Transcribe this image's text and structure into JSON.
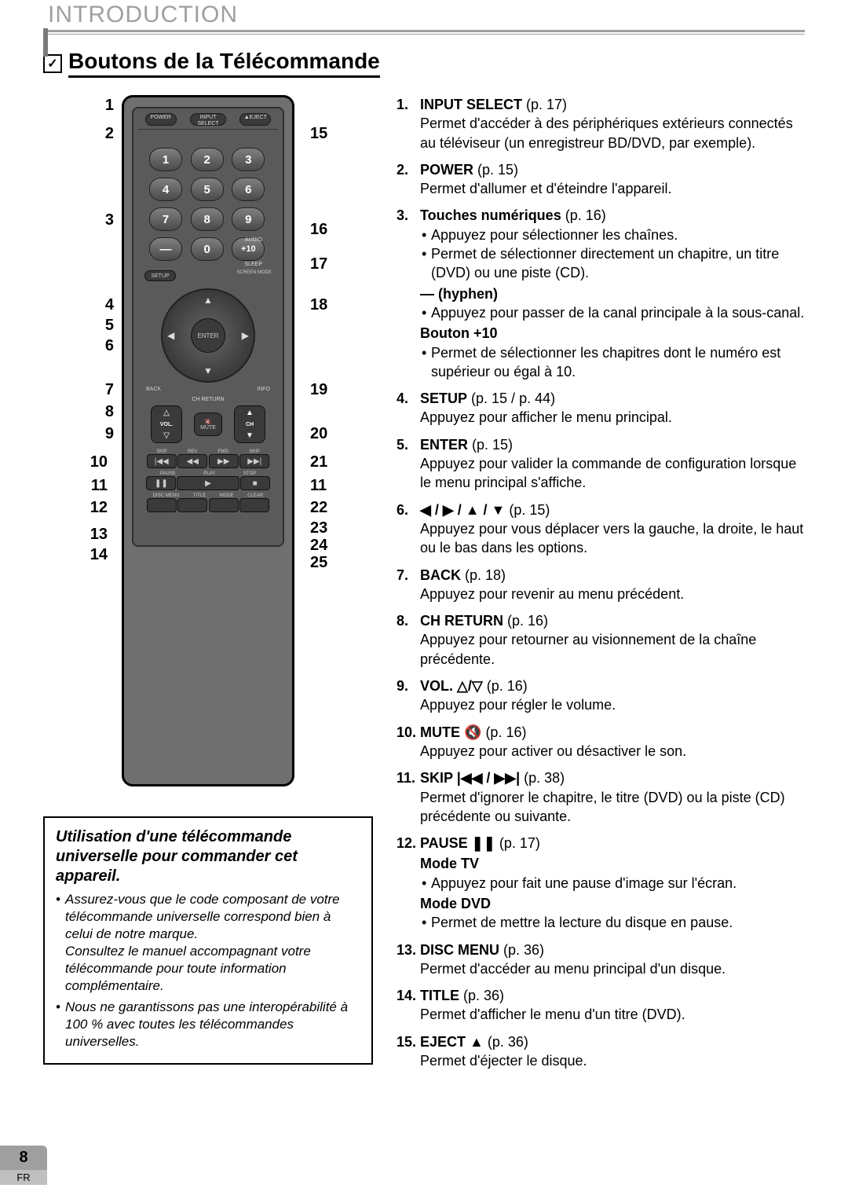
{
  "header": {
    "section": "INTRODUCTION"
  },
  "title": "Boutons de la Télécommande",
  "page": {
    "number": "8",
    "lang": "FR"
  },
  "remote_labels": {
    "power": "POWER",
    "input": "INPUT SELECT",
    "eject": "▲EJECT",
    "audio": "AUDIO",
    "sleep": "SLEEP",
    "setup": "SETUP",
    "screen": "SCREEN MODE",
    "enter": "ENTER",
    "back": "BACK",
    "info": "INFO",
    "chreturn": "CH RETURN",
    "vol": "VOL.",
    "mute": "MUTE",
    "ch": "CH",
    "skip": "SKIP",
    "rev": "REV",
    "fwd": "FWD",
    "pause": "PAUSE",
    "play": "PLAY",
    "stop": "STOP",
    "disc": "DISC MENU",
    "title": "TITLE",
    "mode": "MODE",
    "clear": "CLEAR",
    "keys": [
      "1",
      "2",
      "3",
      "4",
      "5",
      "6",
      "7",
      "8",
      "9",
      "—",
      "0",
      "+10"
    ]
  },
  "callouts_left": [
    "1",
    "2",
    "3",
    "4",
    "5",
    "6",
    "7",
    "8",
    "9",
    "10",
    "11",
    "12",
    "13",
    "14"
  ],
  "callouts_right": [
    "15",
    "16",
    "17",
    "18",
    "19",
    "20",
    "21",
    "11",
    "22",
    "23",
    "24",
    "25"
  ],
  "note": {
    "title": "Utilisation d'une télécommande universelle pour commander cet appareil.",
    "bullets": [
      "Assurez-vous que le code composant de votre télécommande universelle correspond bien à celui de notre marque.\nConsultez le manuel accompagnant votre télécommande pour toute information complémentaire.",
      "Nous ne garantissons pas une interopérabilité à 100 % avec toutes les télécommandes universelles."
    ]
  },
  "items": [
    {
      "n": "1.",
      "name": "INPUT SELECT",
      "page": "p. 17",
      "text": "Permet d'accéder à des périphériques extérieurs connectés au téléviseur (un enregistreur BD/DVD, par exemple)."
    },
    {
      "n": "2.",
      "name": "POWER",
      "page": "p. 15",
      "text": "Permet d'allumer et d'éteindre l'appareil."
    },
    {
      "n": "3.",
      "name": "Touches numériques",
      "page": "p. 16",
      "subs": [
        "Appuyez pour sélectionner les chaînes.",
        "Permet de sélectionner directement un chapitre, un titre (DVD) ou une piste (CD)."
      ],
      "subhead1": "— (hyphen)",
      "subs1": [
        "Appuyez pour passer de la canal principale à la sous-canal."
      ],
      "subhead2": "Bouton +10",
      "subs2": [
        "Permet de sélectionner les chapitres dont le numéro est supérieur ou égal à 10."
      ]
    },
    {
      "n": "4.",
      "name": "SETUP",
      "page": "p. 15 / p. 44",
      "text": "Appuyez pour afficher le menu principal."
    },
    {
      "n": "5.",
      "name": "ENTER",
      "page": "p. 15",
      "text": "Appuyez pour valider la commande de configuration lorsque le menu principal s'affiche."
    },
    {
      "n": "6.",
      "name": "◀ / ▶ / ▲ / ▼",
      "page": "p. 15",
      "text": "Appuyez pour vous déplacer vers la gauche, la droite, le haut ou le bas dans les options."
    },
    {
      "n": "7.",
      "name": "BACK",
      "page": "p. 18",
      "text": "Appuyez pour revenir au menu précédent."
    },
    {
      "n": "8.",
      "name": "CH RETURN",
      "page": "p. 16",
      "text": "Appuyez pour retourner au visionnement de la chaîne précédente."
    },
    {
      "n": "9.",
      "name": "VOL. △/▽",
      "page": "p. 16",
      "text": "Appuyez pour régler le volume."
    },
    {
      "n": "10.",
      "name": "MUTE 🔇",
      "page": "p. 16",
      "text": "Appuyez pour activer ou désactiver le son."
    },
    {
      "n": "11.",
      "name": "SKIP |◀◀ / ▶▶|",
      "page": "p. 38",
      "text": "Permet d'ignorer le chapitre, le titre (DVD) ou la piste (CD) précédente ou suivante."
    },
    {
      "n": "12.",
      "name": "PAUSE ❚❚",
      "page": "p. 17",
      "subhead1": "Mode TV",
      "subs1": [
        "Appuyez pour fait une pause d'image sur l'écran."
      ],
      "subhead2": "Mode DVD",
      "subs2": [
        "Permet de mettre la lecture du disque en pause."
      ]
    },
    {
      "n": "13.",
      "name": "DISC MENU",
      "page": "p. 36",
      "text": "Permet d'accéder au menu principal d'un disque."
    },
    {
      "n": "14.",
      "name": "TITLE",
      "page": "p. 36",
      "text": "Permet d'afficher le menu d'un titre (DVD)."
    },
    {
      "n": "15.",
      "name": "EJECT ▲",
      "page": "p. 36",
      "text": "Permet d'éjecter le disque."
    }
  ]
}
